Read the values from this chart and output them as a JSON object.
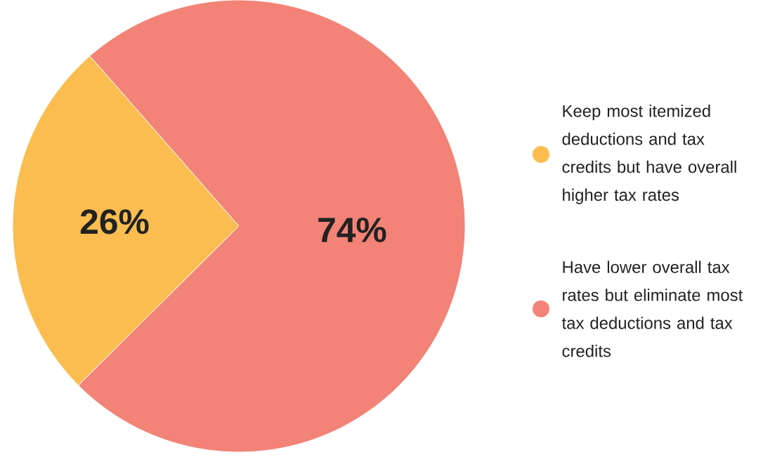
{
  "chart_data": {
    "type": "pie",
    "categories": [
      "Keep most itemized deductions and tax credits but have overall higher tax rates",
      "Have lower overall tax rates but eliminate most tax deductions and tax credits"
    ],
    "values": [
      26,
      74
    ],
    "colors": [
      "#fbbd4f",
      "#f28376"
    ],
    "value_labels": [
      "26%",
      "74%"
    ],
    "legend": "right"
  }
}
